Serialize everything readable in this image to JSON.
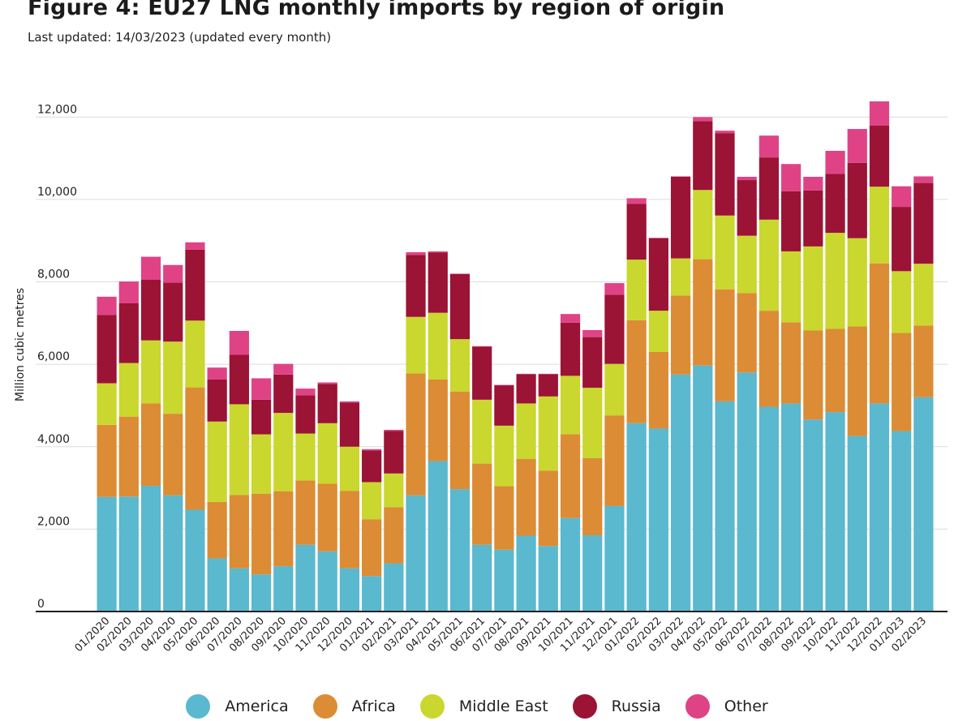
{
  "header": {
    "title": "Figure 4: EU27 LNG monthly imports by region of origin",
    "subtitle": "Last updated: 14/03/2023 (updated every month)"
  },
  "chart_data": {
    "type": "bar",
    "stacked": true,
    "ylabel": "Million cubic metres",
    "ylim": [
      0,
      12400
    ],
    "yticks": [
      0,
      2000,
      4000,
      6000,
      8000,
      10000,
      12000
    ],
    "ytick_labels": [
      "0",
      "2,000",
      "4,000",
      "6,000",
      "8,000",
      "10,000",
      "12,000"
    ],
    "grid": "horizontal",
    "legend_position": "bottom",
    "categories": [
      "01/2020",
      "02/2020",
      "03/2020",
      "04/2020",
      "05/2020",
      "06/2020",
      "07/2020",
      "08/2020",
      "09/2020",
      "10/2020",
      "11/2020",
      "12/2020",
      "01/2021",
      "02/2021",
      "03/2021",
      "04/2021",
      "05/2021",
      "06/2021",
      "07/2021",
      "08/2021",
      "09/2021",
      "10/2021",
      "11/2021",
      "12/2021",
      "01/2022",
      "02/2022",
      "03/2022",
      "04/2022",
      "05/2022",
      "06/2022",
      "07/2022",
      "08/2022",
      "09/2022",
      "10/2022",
      "11/2022",
      "12/2022",
      "01/2023",
      "02/2023"
    ],
    "series": [
      {
        "name": "America",
        "color": "#5ab8cf",
        "values": [
          2780,
          2790,
          3050,
          2820,
          2470,
          1290,
          1050,
          900,
          1100,
          1620,
          1460,
          1050,
          860,
          1170,
          2820,
          3650,
          2970,
          1620,
          1500,
          1840,
          1590,
          2270,
          1850,
          2560,
          4570,
          4440,
          5750,
          5970,
          5100,
          5800,
          4970,
          5050,
          4660,
          4840,
          4260,
          5050,
          4380,
          5200
        ]
      },
      {
        "name": "Africa",
        "color": "#dc8c35",
        "values": [
          1750,
          1940,
          2000,
          1980,
          2970,
          1370,
          1780,
          1960,
          1820,
          1560,
          1640,
          1880,
          1380,
          1360,
          2960,
          1980,
          2370,
          1970,
          1540,
          1860,
          1830,
          2030,
          1870,
          2200,
          2500,
          1860,
          1920,
          2580,
          2720,
          1930,
          2330,
          1970,
          2160,
          2020,
          2660,
          3400,
          2380,
          1740
        ]
      },
      {
        "name": "Middle East",
        "color": "#cad72e",
        "values": [
          1010,
          1300,
          1530,
          1750,
          1620,
          1950,
          2200,
          1440,
          1900,
          1140,
          1470,
          1070,
          900,
          820,
          1370,
          1620,
          1270,
          1550,
          1470,
          1350,
          1800,
          1420,
          1710,
          1250,
          1470,
          1000,
          900,
          1680,
          1790,
          1390,
          2210,
          1720,
          2040,
          2330,
          2140,
          1860,
          1500,
          1500
        ]
      },
      {
        "name": "Russia",
        "color": "#9b1335",
        "values": [
          1660,
          1450,
          1470,
          1430,
          1720,
          1020,
          1200,
          840,
          930,
          930,
          950,
          1070,
          770,
          1030,
          1500,
          1460,
          1580,
          1290,
          980,
          710,
          540,
          1290,
          1230,
          1680,
          1350,
          1760,
          1980,
          1670,
          2000,
          1350,
          1510,
          1460,
          1360,
          1430,
          1830,
          1480,
          1560,
          1960
        ]
      },
      {
        "name": "Other",
        "color": "#df4385",
        "values": [
          440,
          530,
          560,
          430,
          180,
          290,
          580,
          520,
          260,
          160,
          40,
          30,
          30,
          30,
          70,
          30,
          10,
          10,
          10,
          10,
          10,
          210,
          170,
          280,
          140,
          10,
          10,
          100,
          60,
          80,
          530,
          660,
          330,
          560,
          820,
          590,
          500,
          160
        ]
      }
    ]
  }
}
